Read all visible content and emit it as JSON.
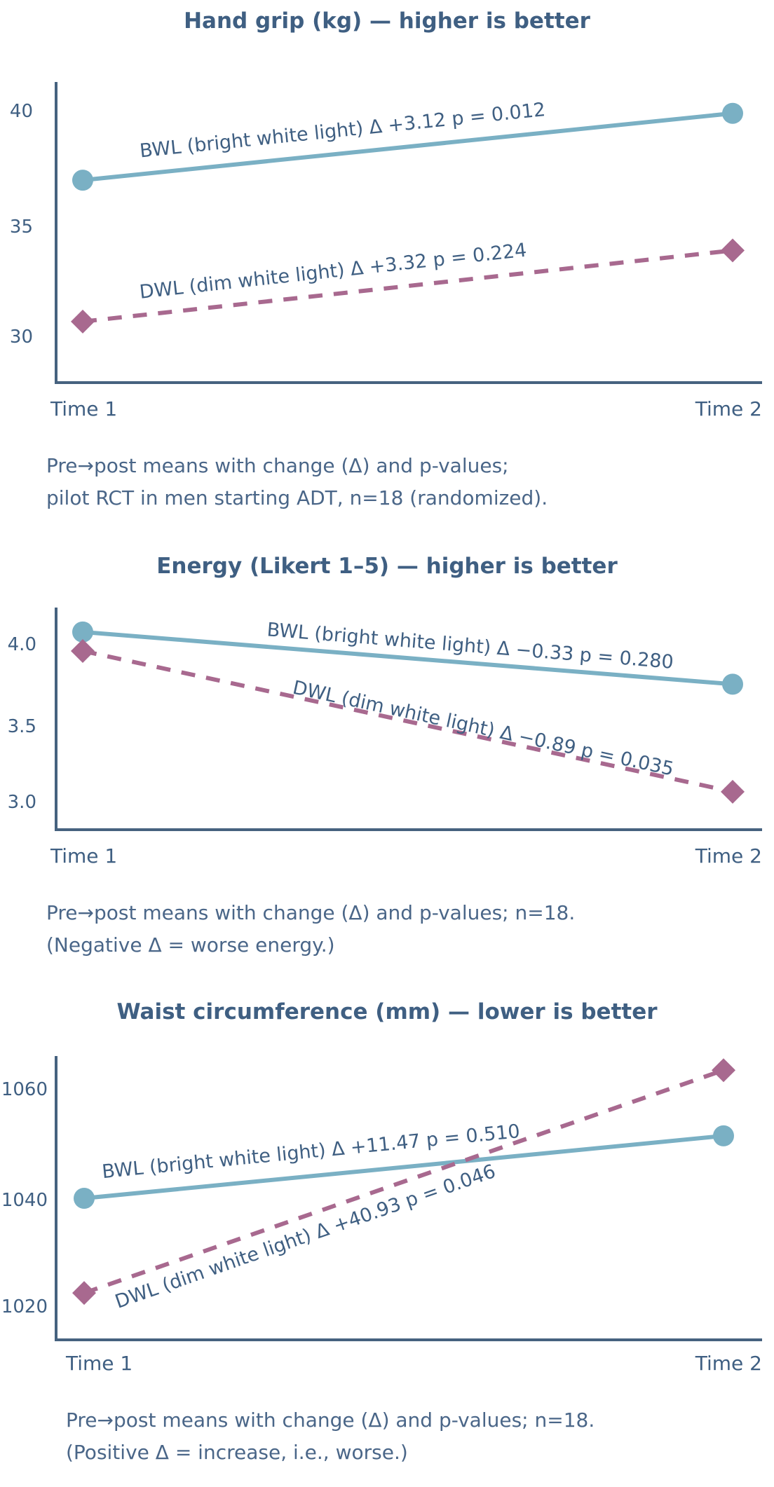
{
  "colors": {
    "bwl": "#7ab0c4",
    "dwl": "#a8698f",
    "axis": "#46627f",
    "text": "#3f5f82"
  },
  "chart_data": [
    {
      "type": "line",
      "title": "Hand grip (kg) — higher is better",
      "categories": [
        "Time 1",
        "Time 2"
      ],
      "xlabel": "",
      "ylabel": "",
      "yticks": [
        "40",
        "35",
        "30"
      ],
      "ytick_values": [
        40,
        35,
        30
      ],
      "ylim": [
        27.3,
        41.3
      ],
      "grid": false,
      "series": [
        {
          "name": "BWL",
          "label": "BWL (bright white light)  Δ +3.12 p = 0.012",
          "values": [
            36.75,
            39.87
          ],
          "marker": "circle",
          "style": "solid"
        },
        {
          "name": "DWL",
          "label": "DWL (dim white light) Δ +3.32 p = 0.224",
          "values": [
            30.15,
            33.47
          ],
          "marker": "diamond",
          "style": "dashed"
        }
      ],
      "notes": [
        "Pre→post means with change (Δ) and p-values;",
        "pilot RCT in men starting ADT, n=18 (randomized)."
      ]
    },
    {
      "type": "line",
      "title": "Energy (Likert 1–5) — higher is better",
      "categories": [
        "Time 1",
        "Time 2"
      ],
      "xlabel": "",
      "ylabel": "",
      "yticks": [
        "4.0",
        "3.5",
        "3.0"
      ],
      "ytick_values": [
        4.0,
        3.5,
        3.0
      ],
      "ylim": [
        2.83,
        4.23
      ],
      "grid": false,
      "series": [
        {
          "name": "BWL",
          "label": "BWL (bright white light)  Δ −0.33 p = 0.280",
          "values": [
            4.08,
            3.75
          ],
          "marker": "circle",
          "style": "solid"
        },
        {
          "name": "DWL",
          "label": "DWL (dim white light) Δ −0.89 p = 0.035",
          "values": [
            3.96,
            3.07
          ],
          "marker": "diamond",
          "style": "dashed"
        }
      ],
      "notes": [
        "Pre→post means with change (Δ) and p-values; n=18.",
        "(Negative Δ = worse energy.)"
      ]
    },
    {
      "type": "line",
      "title": "Waist circumference (mm) — lower is better",
      "categories": [
        "Time 1",
        "Time 2"
      ],
      "xlabel": "",
      "ylabel": "",
      "yticks": [
        "1060",
        "1040",
        "1020"
      ],
      "ytick_values": [
        1060,
        1040,
        1020
      ],
      "ylim": [
        1014,
        1066
      ],
      "grid": false,
      "series": [
        {
          "name": "BWL",
          "label": "BWL (bright white light) Δ +11.47 p = 0.510",
          "values": [
            1040.0,
            1051.47
          ],
          "marker": "circle",
          "style": "solid"
        },
        {
          "name": "DWL",
          "label": "DWL (dim white light) Δ +40.93 p = 0.046",
          "values": [
            1022.6,
            1063.53
          ],
          "marker": "diamond",
          "style": "dashed"
        }
      ],
      "notes": [
        "Pre→post means with change (Δ) and p-values; n=18.",
        "(Positive Δ = increase, i.e., worse.)"
      ]
    }
  ]
}
